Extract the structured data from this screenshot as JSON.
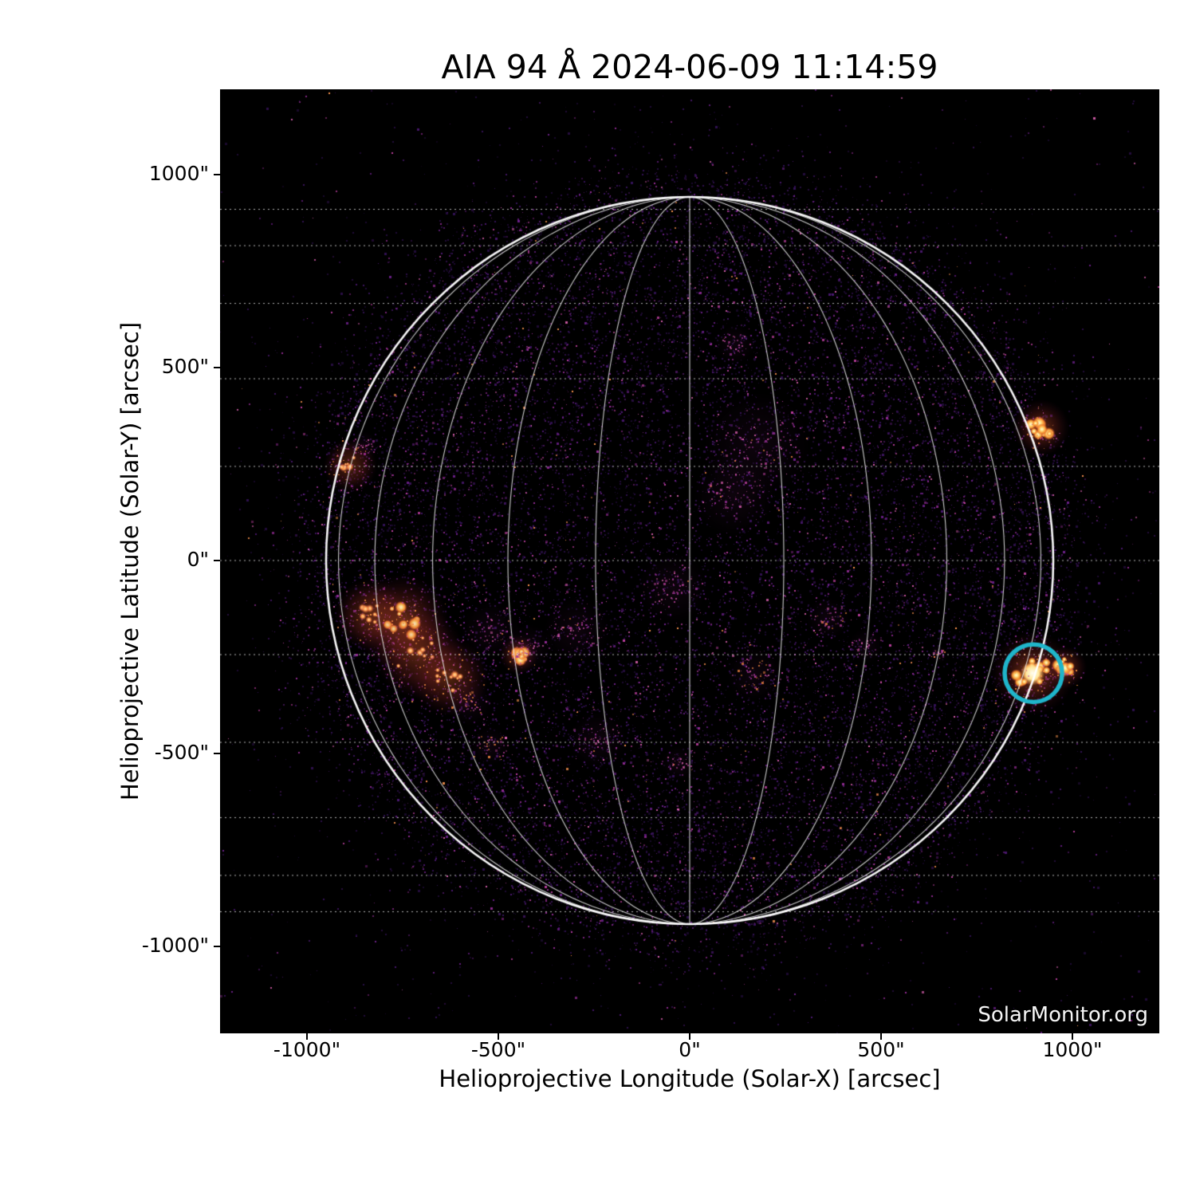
{
  "figure": {
    "title": "AIA 94 Å 2024-06-09 11:14:59",
    "watermark": "SolarMonitor.org",
    "background_color": "#ffffff",
    "plot_background": "#000000",
    "text_color": "#000000"
  },
  "chart_data": {
    "type": "heatmap",
    "title": "AIA 94 Å 2024-06-09 11:14:59",
    "subtitle": "",
    "xlabel": "Helioprojective Longitude (Solar-X) [arcsec]",
    "ylabel": "Helioprojective Latitude (Solar-Y) [arcsec]",
    "xlim": [
      -1227,
      1227
    ],
    "ylim": [
      -1225,
      1221
    ],
    "grid_on": true,
    "legend": "none",
    "x_ticks": [
      {
        "v": -1000,
        "label": "-1000\""
      },
      {
        "v": -500,
        "label": "-500\""
      },
      {
        "v": 0,
        "label": "0\""
      },
      {
        "v": 500,
        "label": "500\""
      },
      {
        "v": 1000,
        "label": "1000\""
      }
    ],
    "y_ticks": [
      {
        "v": 1000,
        "label": "1000\""
      },
      {
        "v": 500,
        "label": "500\""
      },
      {
        "v": 0,
        "label": "0\""
      },
      {
        "v": -500,
        "label": "-500\""
      },
      {
        "v": -1000,
        "label": "-1000\""
      }
    ],
    "grid": {
      "type": "heliographic-stonyhurst",
      "spacing_deg": 15,
      "color": "#ffffff",
      "parallel_style": "dotted",
      "meridian_style": "solid"
    },
    "solar_disk": {
      "radius_arcsec": 950,
      "limb_color": "#ffffff",
      "interior_color": "#000000"
    },
    "colormap": "sdoaia94 black-purple-magenta-orange-white",
    "annotation_circle": {
      "x_arcsec": 898,
      "y_arcsec": -292,
      "radius_arcsec": 75,
      "color": "#1fb5ca"
    },
    "active_regions": [
      {
        "x": -753,
        "y": -160,
        "class": "bright",
        "size": 32
      },
      {
        "x": -835,
        "y": -140,
        "class": "medium",
        "size": 24
      },
      {
        "x": -705,
        "y": -243,
        "class": "medium",
        "size": 30
      },
      {
        "x": -628,
        "y": -302,
        "class": "medium",
        "size": 26
      },
      {
        "x": -575,
        "y": -368,
        "class": "faint-orange",
        "size": 24
      },
      {
        "x": -447,
        "y": -244,
        "class": "bright",
        "size": 13
      },
      {
        "x": -420,
        "y": -225,
        "class": "faint",
        "size": 24
      },
      {
        "x": -520,
        "y": -180,
        "class": "faint",
        "size": 30
      },
      {
        "x": -887,
        "y": 246,
        "class": "medium",
        "size": 18
      },
      {
        "x": -852,
        "y": 298,
        "class": "faint-orange",
        "size": 15
      },
      {
        "x": 918,
        "y": 344,
        "class": "bright",
        "size": 19
      },
      {
        "x": 896,
        "y": -292,
        "class": "very-bright",
        "size": 28
      },
      {
        "x": 983,
        "y": -277,
        "class": "bright",
        "size": 14
      },
      {
        "x": 650,
        "y": -242,
        "class": "faint-orange",
        "size": 10
      },
      {
        "x": 360,
        "y": -150,
        "class": "faint-orange",
        "size": 22
      },
      {
        "x": 460,
        "y": -222,
        "class": "faint",
        "size": 18
      },
      {
        "x": 175,
        "y": 300,
        "class": "faint",
        "size": 55
      },
      {
        "x": 115,
        "y": 168,
        "class": "faint",
        "size": 42
      },
      {
        "x": 118,
        "y": 560,
        "class": "faint",
        "size": 20
      },
      {
        "x": -45,
        "y": -70,
        "class": "faint",
        "size": 36
      },
      {
        "x": 168,
        "y": -295,
        "class": "faint-orange",
        "size": 28
      },
      {
        "x": -240,
        "y": -465,
        "class": "faint",
        "size": 30
      },
      {
        "x": -520,
        "y": -480,
        "class": "faint-orange",
        "size": 20
      },
      {
        "x": -30,
        "y": -525,
        "class": "faint",
        "size": 18
      },
      {
        "x": -295,
        "y": -180,
        "class": "faint",
        "size": 34
      }
    ]
  }
}
